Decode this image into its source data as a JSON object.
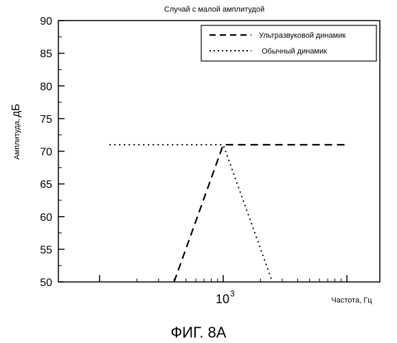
{
  "chart_data": {
    "type": "line",
    "title": "Случай с малой амплитудой",
    "xlabel": "Частота, Гц",
    "ylabel_main": "Амплитуда,",
    "ylabel_unit": "дБ",
    "x_scale": "log",
    "x_major_tick_label": {
      "base": "10",
      "exponent": "3"
    },
    "ylim": [
      50,
      90
    ],
    "y_ticks": [
      50,
      55,
      60,
      65,
      70,
      75,
      80,
      85,
      90
    ],
    "grid": false,
    "legend_position": "top-right",
    "series": [
      {
        "name": "Ультразвуковой динамик",
        "style": "dashed",
        "points": [
          [
            400,
            50
          ],
          [
            1000,
            71
          ],
          [
            10000,
            71
          ]
        ]
      },
      {
        "name": "Обычный динамик",
        "style": "dotted",
        "points": [
          [
            120,
            71
          ],
          [
            1000,
            71
          ],
          [
            2500,
            50
          ]
        ]
      }
    ]
  },
  "caption": "ФИГ. 8А"
}
